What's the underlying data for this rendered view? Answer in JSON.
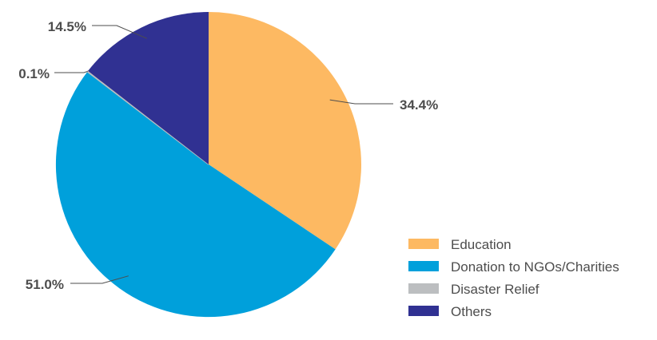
{
  "chart_data": {
    "type": "pie",
    "slices": [
      {
        "name": "Education",
        "value": 34.4,
        "label": "34.4%",
        "color": "#fdb962"
      },
      {
        "name": "Donation to NGOs/Charities",
        "value": 51.0,
        "label": "51.0%",
        "color": "#00a0db"
      },
      {
        "name": "Disaster Relief",
        "value": 0.1,
        "label": "0.1%",
        "color": "#bcbec0"
      },
      {
        "name": "Others",
        "value": 14.5,
        "label": "14.5%",
        "color": "#303192"
      }
    ],
    "legend_position": "bottom-right",
    "start_angle": "12 o'clock",
    "direction": "clockwise"
  }
}
